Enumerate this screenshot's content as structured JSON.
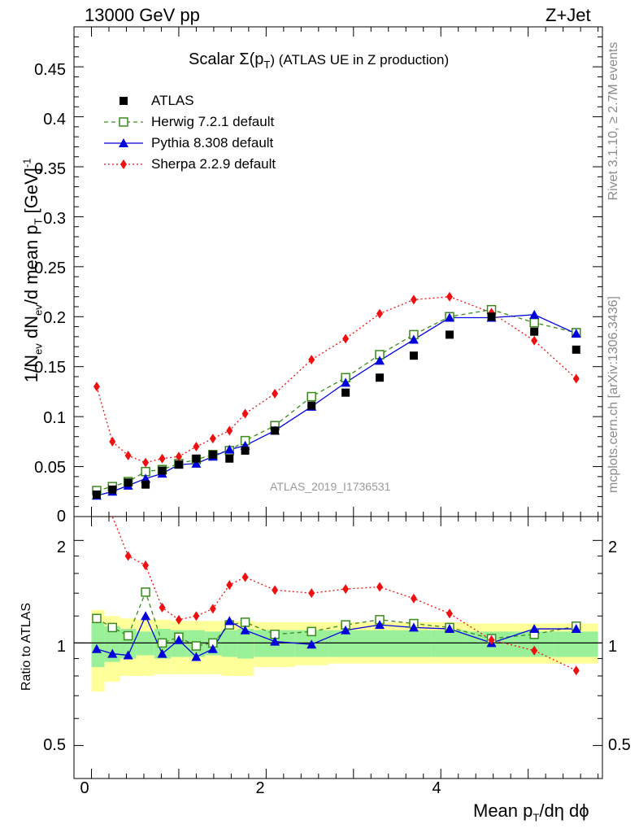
{
  "header": {
    "left": "13000 GeV pp",
    "right": "Z+Jet"
  },
  "side_text": {
    "rivet": "Rivet 3.1.10, ≥ 2.7M events",
    "mcplots": "mcplots.cern.ch [arXiv:1306.3436]"
  },
  "chart_data": {
    "type": "scatter",
    "title": "Scalar Σ(p_T) (ATLAS UE in Z production)",
    "title_main": "Scalar Σ(p",
    "title_sub": "T",
    "title_rest": ") (ATLAS UE in Z production)",
    "watermark": "ATLAS_2019_I1736531",
    "ylabel_top": "1/N_ev dN_ev/d mean p_T [GeV]^-1",
    "ylabel_ratio": "Ratio to ATLAS",
    "xlabel": "Mean p_T/dη dϕ",
    "xlim": [
      -0.2,
      5.85
    ],
    "ylim_top": [
      0,
      0.49
    ],
    "ylim_ratio": [
      0.4,
      2.35
    ],
    "ratio_log_scale": true,
    "x_ticks": [
      "0",
      "2",
      "4"
    ],
    "y_ticks_top": [
      "0",
      "0.05",
      "0.1",
      "0.15",
      "0.2",
      "0.25",
      "0.3",
      "0.35",
      "0.4",
      "0.45"
    ],
    "y_ticks_ratio": [
      "0.5",
      "1",
      "2"
    ],
    "legend_position": "top-left",
    "x": [
      0.06,
      0.24,
      0.42,
      0.62,
      0.81,
      1.0,
      1.2,
      1.39,
      1.58,
      1.76,
      2.1,
      2.52,
      2.91,
      3.3,
      3.69,
      4.1,
      4.58,
      5.07,
      5.55
    ],
    "series": [
      {
        "name": "ATLAS",
        "color": "#000000",
        "marker": "filled-square",
        "values": [
          0.022,
          0.027,
          0.034,
          0.032,
          0.046,
          0.052,
          0.058,
          0.062,
          0.058,
          0.066,
          0.086,
          0.111,
          0.124,
          0.139,
          0.161,
          0.182,
          0.2,
          0.185,
          0.167
        ]
      },
      {
        "name": "Herwig 7.2.1 default",
        "color": "#3a8a1f",
        "marker": "open-square",
        "dash": "5,4",
        "values": [
          0.026,
          0.03,
          0.035,
          0.045,
          0.047,
          0.053,
          0.057,
          0.062,
          0.066,
          0.076,
          0.091,
          0.12,
          0.139,
          0.162,
          0.182,
          0.2,
          0.207,
          0.194,
          0.184
        ],
        "ratio": [
          1.18,
          1.11,
          1.05,
          1.41,
          1.0,
          1.04,
          0.98,
          1.0,
          1.13,
          1.15,
          1.06,
          1.08,
          1.13,
          1.17,
          1.14,
          1.11,
          1.03,
          1.06,
          1.12
        ]
      },
      {
        "name": "Pythia 8.308 default",
        "color": "#0000dd",
        "marker": "filled-triangle",
        "values": [
          0.021,
          0.025,
          0.031,
          0.038,
          0.043,
          0.052,
          0.053,
          0.06,
          0.067,
          0.071,
          0.086,
          0.11,
          0.134,
          0.156,
          0.177,
          0.199,
          0.199,
          0.202,
          0.183
        ],
        "ratio": [
          0.96,
          0.93,
          0.92,
          1.2,
          0.93,
          1.02,
          0.91,
          0.96,
          1.16,
          1.09,
          1.01,
          0.99,
          1.09,
          1.13,
          1.11,
          1.1,
          1.0,
          1.1,
          1.1
        ]
      },
      {
        "name": "Sherpa 2.2.9 default",
        "color": "#ee1111",
        "marker": "filled-diamond",
        "dash": "2,3",
        "values": [
          0.13,
          0.075,
          0.061,
          0.054,
          0.058,
          0.06,
          0.07,
          0.078,
          0.086,
          0.103,
          0.123,
          0.157,
          0.178,
          0.203,
          0.217,
          0.22,
          0.204,
          0.176,
          0.138
        ],
        "ratio": [
          5.9,
          2.75,
          1.8,
          1.69,
          1.27,
          1.17,
          1.2,
          1.26,
          1.48,
          1.56,
          1.43,
          1.4,
          1.44,
          1.46,
          1.35,
          1.22,
          1.02,
          0.95,
          0.83
        ]
      }
    ],
    "ratio_band": {
      "xedges": [
        0.0,
        0.15,
        0.33,
        0.51,
        0.72,
        0.91,
        1.1,
        1.3,
        1.49,
        1.67,
        1.86,
        2.33,
        2.71,
        3.1,
        3.5,
        3.89,
        4.3,
        4.85,
        5.3,
        5.8
      ],
      "stat_low": [
        0.85,
        0.88,
        0.9,
        0.92,
        0.9,
        0.91,
        0.91,
        0.92,
        0.91,
        0.9,
        0.91,
        0.91,
        0.91,
        0.91,
        0.91,
        0.91,
        0.91,
        0.91,
        0.91
      ],
      "stat_high": [
        1.15,
        1.12,
        1.1,
        1.08,
        1.1,
        1.09,
        1.09,
        1.08,
        1.09,
        1.1,
        1.09,
        1.09,
        1.09,
        1.09,
        1.09,
        1.09,
        1.08,
        1.08,
        1.08
      ],
      "tot_low": [
        0.72,
        0.77,
        0.8,
        0.8,
        0.81,
        0.81,
        0.81,
        0.81,
        0.8,
        0.8,
        0.85,
        0.86,
        0.87,
        0.87,
        0.87,
        0.87,
        0.87,
        0.87,
        0.87
      ],
      "tot_high": [
        1.25,
        1.2,
        1.18,
        1.17,
        1.17,
        1.16,
        1.16,
        1.16,
        1.16,
        1.16,
        1.15,
        1.15,
        1.15,
        1.15,
        1.15,
        1.15,
        1.14,
        1.14,
        1.14
      ]
    }
  }
}
